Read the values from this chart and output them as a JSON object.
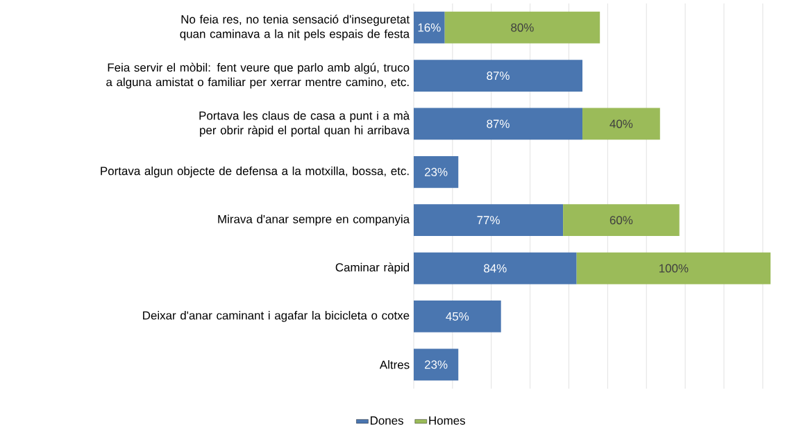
{
  "chart_data": {
    "type": "bar",
    "orientation": "horizontal",
    "stacked": true,
    "categories": [
      "No feia res, no tenia sensació d'inseguretat quan caminava a la nit pels espais de festa",
      "Feia servir el mòbil: fent veure que parlo amb algú, truco a alguna amistat o familiar per xerrar mentre camino, etc.",
      "Portava les claus de casa a punt i a mà per obrir ràpid el portal quan hi arribava",
      "Portava algun objecte de defensa a la motxilla, bossa, etc.",
      "Mirava d'anar sempre en companyia",
      "Caminar ràpid",
      "Deixar d'anar caminant i agafar la bicicleta o cotxe",
      "Altres"
    ],
    "series": [
      {
        "name": "Dones",
        "color": "#4a76b0",
        "values": [
          16,
          87,
          87,
          23,
          77,
          84,
          45,
          23
        ],
        "value_labels": [
          "16%",
          "87%",
          "87%",
          "23%",
          "77%",
          "84%",
          "45%",
          "23%"
        ]
      },
      {
        "name": "Homes",
        "color": "#9bbb59",
        "values": [
          80,
          null,
          40,
          null,
          60,
          100,
          null,
          null
        ],
        "value_labels": [
          "80%",
          null,
          "40%",
          null,
          "60%",
          "100%",
          null,
          null
        ]
      }
    ],
    "xlim": [
      0,
      184
    ],
    "xticks": [
      {
        "value": 0,
        "label": null
      },
      {
        "value": 20,
        "label": null
      },
      {
        "value": 40,
        "label": null
      },
      {
        "value": 60,
        "label": null
      },
      {
        "value": 80,
        "label": null
      },
      {
        "value": 100,
        "label": null
      },
      {
        "value": 120,
        "label": null
      },
      {
        "value": 140,
        "label": null
      },
      {
        "value": 160,
        "label": null
      },
      {
        "value": 180,
        "label": null
      }
    ],
    "tick_labels": "y",
    "grid": "x",
    "legend": "bottom"
  }
}
